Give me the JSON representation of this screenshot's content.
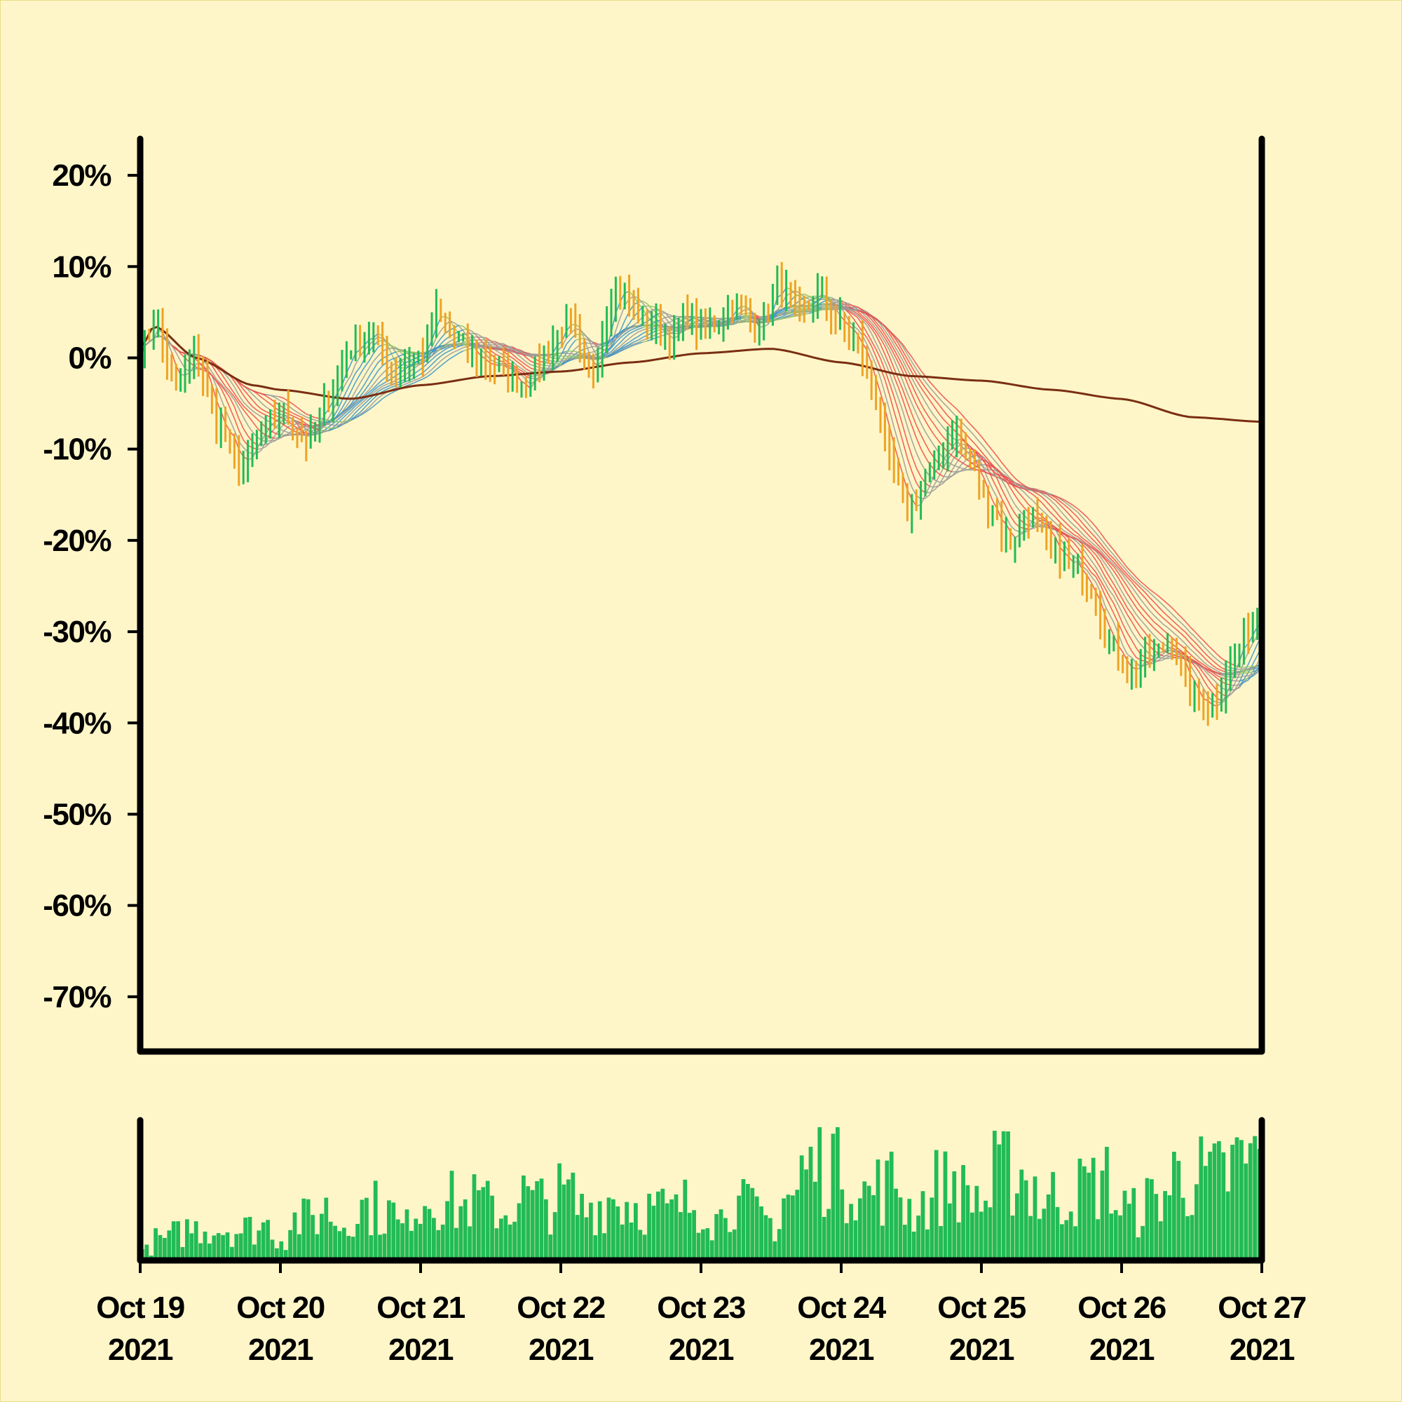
{
  "colors": {
    "background": "#fef6c8",
    "candle_up": "#22bb55",
    "candle_down": "#eea324",
    "ribbon_up": "#8fc26a",
    "ribbon_up_alt": "#3a94c8",
    "ribbon_down": "#ef4a4a",
    "ribbon_neutral": "#999999",
    "long_ma": "#7a2e12",
    "volume": "#22bb55",
    "axis": "#000000"
  },
  "chart_data": [
    {
      "type": "candlestick",
      "y_scale": "percent",
      "ylim": [
        -76,
        24
      ],
      "xlim": [
        "2021-10-19",
        "2021-10-27"
      ],
      "grid": false,
      "legend": "none",
      "y_ticks": [
        {
          "value": 20,
          "label": "20%"
        },
        {
          "value": 10,
          "label": "10%"
        },
        {
          "value": 0,
          "label": "0%"
        },
        {
          "value": -10,
          "label": "-10%"
        },
        {
          "value": -20,
          "label": "-20%"
        },
        {
          "value": -30,
          "label": "-30%"
        },
        {
          "value": -40,
          "label": "-40%"
        },
        {
          "value": -50,
          "label": "-50%"
        },
        {
          "value": -60,
          "label": "-60%"
        },
        {
          "value": -70,
          "label": "-70%"
        }
      ],
      "x_ticks": [
        {
          "date": "2021-10-19",
          "line1": "Oct 19",
          "line2": "2021"
        },
        {
          "date": "2021-10-20",
          "line1": "Oct 20",
          "line2": "2021"
        },
        {
          "date": "2021-10-21",
          "line1": "Oct 21",
          "line2": "2021"
        },
        {
          "date": "2021-10-22",
          "line1": "Oct 22",
          "line2": "2021"
        },
        {
          "date": "2021-10-23",
          "line1": "Oct 23",
          "line2": "2021"
        },
        {
          "date": "2021-10-24",
          "line1": "Oct 24",
          "line2": "2021"
        },
        {
          "date": "2021-10-25",
          "line1": "Oct 25",
          "line2": "2021"
        },
        {
          "date": "2021-10-26",
          "line1": "Oct 26",
          "line2": "2021"
        },
        {
          "date": "2021-10-27",
          "line1": "Oct 27",
          "line2": "2021"
        }
      ],
      "price_path": {
        "day_offsets": [
          0,
          0.1,
          0.25,
          0.4,
          0.55,
          0.72,
          0.88,
          1.0,
          1.2,
          1.35,
          1.5,
          1.65,
          1.8,
          2.0,
          2.1,
          2.25,
          2.4,
          2.55,
          2.75,
          2.9,
          3.05,
          3.2,
          3.4,
          3.6,
          3.8,
          3.9,
          4.0,
          4.1,
          4.25,
          4.4,
          4.55,
          4.7,
          4.85,
          4.97,
          5.1,
          5.25,
          5.35,
          5.48,
          5.62,
          5.8,
          5.93,
          6.05,
          6.2,
          6.35,
          6.5,
          6.65,
          6.8,
          6.9,
          7.05,
          7.2,
          7.35,
          7.5,
          7.65,
          7.8,
          7.9,
          8.0
        ],
        "close_pct": [
          1,
          4,
          -3,
          0,
          -7,
          -12,
          -8,
          -6,
          -9,
          -4,
          1,
          3,
          -1,
          0,
          5,
          2,
          0,
          -1,
          -3,
          1,
          4,
          -2,
          8,
          4,
          2,
          5,
          3,
          4,
          6,
          3,
          8,
          5,
          7,
          4,
          2,
          -4,
          -12,
          -17,
          -13,
          -8,
          -12,
          -16,
          -20,
          -17,
          -21,
          -23,
          -25,
          -31,
          -34,
          -33,
          -31,
          -37,
          -38,
          -33,
          -30,
          -27
        ]
      },
      "ribbon_sample": {
        "day_offsets": [
          0,
          0.5,
          1.0,
          1.5,
          2.0,
          2.5,
          3.0,
          3.5,
          4.0,
          4.5,
          5.0,
          5.5,
          6.0,
          6.5,
          7.0,
          7.5,
          8.0
        ],
        "fast_ma_pct": [
          2,
          -3,
          -6,
          -3,
          0,
          2,
          1,
          3,
          3,
          5,
          4,
          -12,
          -11,
          -14,
          -21,
          -33,
          -29
        ],
        "slow_ma_pct": [
          2,
          0,
          -3,
          -5,
          -4,
          -2,
          -1,
          1,
          2,
          4,
          5,
          -3,
          -10,
          -15,
          -21,
          -27,
          -25
        ]
      },
      "long_ma": {
        "day_offsets": [
          0,
          0.1,
          0.4,
          0.8,
          1.0,
          1.5,
          2.0,
          2.5,
          3.0,
          3.5,
          4.0,
          4.5,
          5.0,
          5.5,
          6.0,
          6.5,
          7.0,
          7.5,
          8.0
        ],
        "values_pct": [
          1,
          3.5,
          0,
          -3,
          -3.5,
          -4.5,
          -3,
          -2,
          -1.5,
          -0.5,
          0.5,
          1.0,
          -0.5,
          -2,
          -2.5,
          -3.5,
          -4.5,
          -6.5,
          -7.0
        ]
      }
    },
    {
      "type": "bar",
      "name": "volume",
      "x_ticks": [
        "Oct 19 2021",
        "Oct 20 2021",
        "Oct 21 2021",
        "Oct 22 2021",
        "Oct 23 2021",
        "Oct 24 2021",
        "Oct 25 2021",
        "Oct 26 2021",
        "Oct 27 2021"
      ],
      "volume_level": [
        10,
        20,
        25,
        30,
        30,
        30,
        28,
        30,
        33,
        20,
        38,
        40,
        48,
        35,
        50,
        50,
        45,
        32,
        55,
        60,
        55,
        50,
        55,
        50,
        45,
        60,
        55,
        55,
        60,
        48,
        52,
        58,
        55,
        52,
        48,
        45,
        52,
        55,
        40,
        60,
        50,
        40,
        35,
        60,
        85,
        90,
        100,
        78,
        62,
        68,
        72,
        50,
        55,
        70,
        75,
        62,
        55,
        80,
        85,
        72,
        55,
        60,
        65,
        70,
        75,
        50,
        45,
        55,
        65,
        80,
        78,
        75,
        80,
        90,
        95
      ],
      "ylim": [
        0,
        100
      ]
    }
  ]
}
